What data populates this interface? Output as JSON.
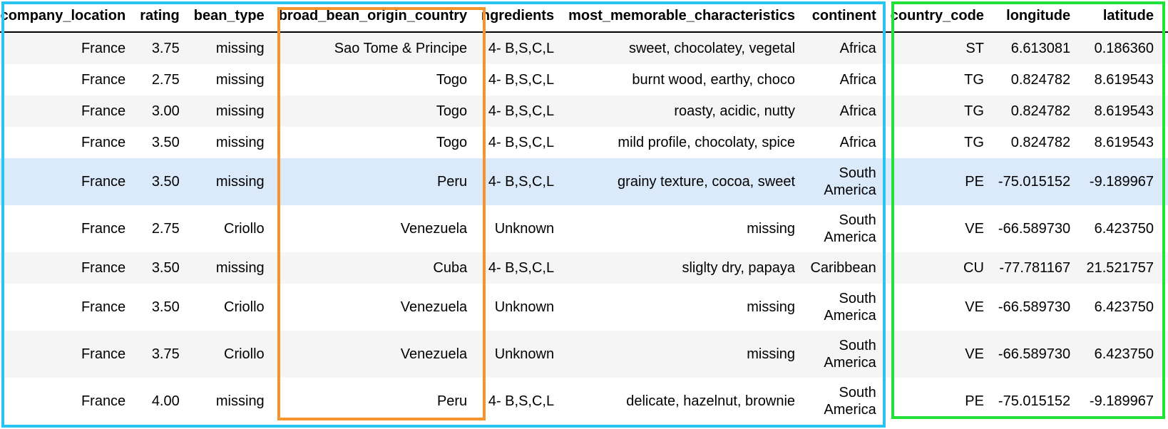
{
  "columns": [
    "company_location",
    "rating",
    "bean_type",
    "broad_bean_origin_country",
    "ingredients",
    "most_memorable_characteristics",
    "continent",
    "country_code",
    "longitude",
    "latitude"
  ],
  "rows": [
    [
      "France",
      "3.75",
      "missing",
      "Sao Tome & Principe",
      "4- B,S,C,L",
      "sweet, chocolatey, vegetal",
      "Africa",
      "ST",
      "6.613081",
      "0.186360"
    ],
    [
      "France",
      "2.75",
      "missing",
      "Togo",
      "4- B,S,C,L",
      "burnt wood, earthy, choco",
      "Africa",
      "TG",
      "0.824782",
      "8.619543"
    ],
    [
      "France",
      "3.00",
      "missing",
      "Togo",
      "4- B,S,C,L",
      "roasty, acidic, nutty",
      "Africa",
      "TG",
      "0.824782",
      "8.619543"
    ],
    [
      "France",
      "3.50",
      "missing",
      "Togo",
      "4- B,S,C,L",
      "mild profile, chocolaty, spice",
      "Africa",
      "TG",
      "0.824782",
      "8.619543"
    ],
    [
      "France",
      "3.50",
      "missing",
      "Peru",
      "4- B,S,C,L",
      "grainy texture, cocoa, sweet",
      "South America",
      "PE",
      "-75.015152",
      "-9.189967"
    ],
    [
      "France",
      "2.75",
      "Criollo",
      "Venezuela",
      "Unknown",
      "missing",
      "South America",
      "VE",
      "-66.589730",
      "6.423750"
    ],
    [
      "France",
      "3.50",
      "missing",
      "Cuba",
      "4- B,S,C,L",
      "sliglty dry, papaya",
      "Caribbean",
      "CU",
      "-77.781167",
      "21.521757"
    ],
    [
      "France",
      "3.50",
      "Criollo",
      "Venezuela",
      "Unknown",
      "missing",
      "South America",
      "VE",
      "-66.589730",
      "6.423750"
    ],
    [
      "France",
      "3.75",
      "Criollo",
      "Venezuela",
      "Unknown",
      "missing",
      "South America",
      "VE",
      "-66.589730",
      "6.423750"
    ],
    [
      "France",
      "4.00",
      "missing",
      "Peru",
      "4- B,S,C,L",
      "delicate, hazelnut, brownie",
      "South America",
      "PE",
      "-75.015152",
      "-9.189967"
    ]
  ],
  "highlight_colors": {
    "blue_box": "#29c5f0",
    "orange_box": "#f5942a",
    "green_box": "#22e23a",
    "hover_row": "#dbeafa",
    "striped_row": "#f5f5f5"
  }
}
